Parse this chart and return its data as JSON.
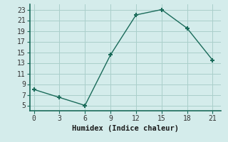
{
  "x": [
    0,
    3,
    6,
    9,
    12,
    15,
    18,
    21
  ],
  "y": [
    8,
    6.5,
    5,
    14.5,
    22,
    23,
    19.5,
    13.5
  ],
  "xlabel": "Humidex (Indice chaleur)",
  "xlim": [
    -0.5,
    22
  ],
  "ylim": [
    4,
    24
  ],
  "xticks": [
    0,
    3,
    6,
    9,
    12,
    15,
    18,
    21
  ],
  "yticks": [
    5,
    7,
    9,
    11,
    13,
    15,
    17,
    19,
    21,
    23
  ],
  "line_color": "#1a6b5a",
  "marker": "+",
  "bg_color": "#d4eceb",
  "grid_color": "#aacfcb",
  "axis_color": "#1a6b5a",
  "label_fontsize": 7.5,
  "tick_fontsize": 7
}
